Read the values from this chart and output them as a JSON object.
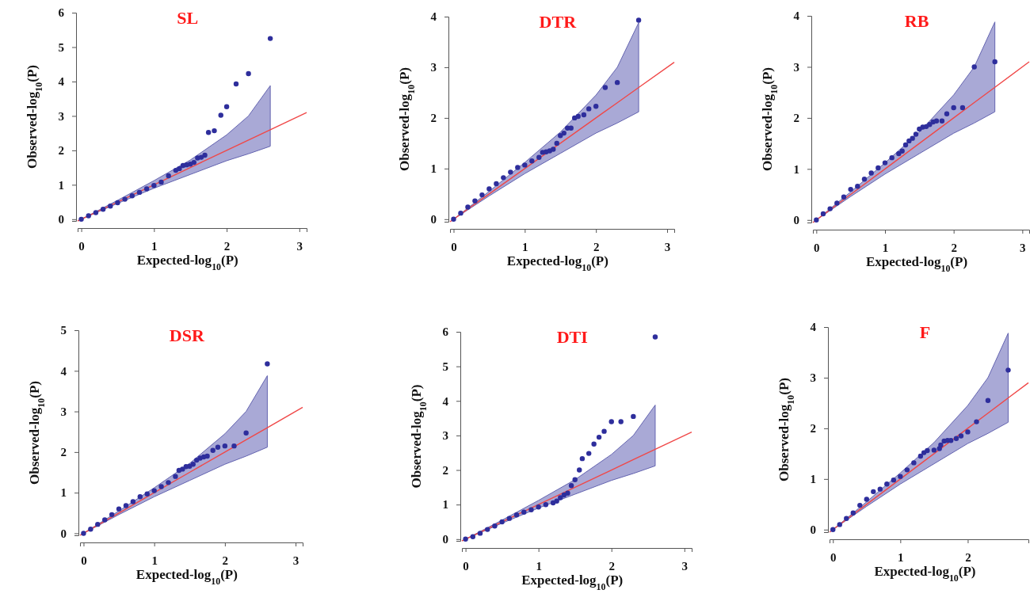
{
  "chart_data": [
    {
      "type": "scatter",
      "title": "SL",
      "xlabel": "Expected-log$_{10}$(P)",
      "ylabel": "Observed-log$_{10}$(P)",
      "xlim": [
        -0.05,
        3.1
      ],
      "ylim": [
        -0.05,
        6
      ],
      "xticks": [
        0,
        1,
        2,
        3
      ],
      "yticks": [
        0,
        1,
        2,
        3,
        4,
        5,
        6
      ],
      "series": [
        {
          "type": "line",
          "color": "#f04848",
          "x": [
            -0.05,
            0,
            0.5,
            1,
            1.5,
            2,
            2.3,
            2.6,
            3.1
          ],
          "values": [
            -0.05,
            0,
            0.5,
            1,
            1.5,
            2,
            2.3,
            2.6,
            3.1
          ],
          "lower": [
            null,
            0,
            0.46,
            0.9,
            1.3,
            1.7,
            1.9,
            2.12,
            null
          ],
          "upper": [
            null,
            0,
            0.55,
            1.12,
            1.72,
            2.45,
            3.0,
            3.88,
            null
          ]
        },
        {
          "type": "scatter",
          "marker": "circle",
          "color": "#2e2e9c",
          "x": [
            0,
            0.1,
            0.2,
            0.3,
            0.4,
            0.5,
            0.6,
            0.7,
            0.8,
            0.9,
            1.0,
            1.1,
            1.2,
            1.3,
            1.35,
            1.4,
            1.45,
            1.5,
            1.55,
            1.6,
            1.65,
            1.7,
            1.75,
            1.83,
            1.92,
            2.0,
            2.13,
            2.3,
            2.6
          ],
          "values": [
            0,
            0.1,
            0.19,
            0.29,
            0.38,
            0.48,
            0.58,
            0.68,
            0.78,
            0.88,
            0.98,
            1.08,
            1.26,
            1.42,
            1.47,
            1.56,
            1.58,
            1.6,
            1.65,
            1.78,
            1.8,
            1.86,
            2.52,
            2.57,
            3.02,
            3.27,
            3.93,
            4.23,
            5.25
          ]
        }
      ]
    },
    {
      "type": "scatter",
      "title": "DTR",
      "xlabel": "Expected-log$_{10}$(P)",
      "ylabel": "Observed-log$_{10}$(P)",
      "xlim": [
        -0.05,
        3.1
      ],
      "ylim": [
        -0.05,
        4
      ],
      "xticks": [
        0,
        1,
        2,
        3
      ],
      "yticks": [
        0,
        1,
        2,
        3,
        4
      ],
      "series": [
        {
          "type": "line",
          "color": "#f04848",
          "x": [
            -0.05,
            0,
            0.5,
            1,
            1.5,
            2,
            2.3,
            2.6,
            3.1
          ],
          "values": [
            -0.05,
            0,
            0.5,
            1,
            1.5,
            2,
            2.3,
            2.6,
            3.1
          ],
          "lower": [
            null,
            0,
            0.46,
            0.9,
            1.3,
            1.7,
            1.9,
            2.12,
            null
          ],
          "upper": [
            null,
            0,
            0.55,
            1.12,
            1.72,
            2.45,
            3.0,
            3.88,
            null
          ]
        },
        {
          "type": "scatter",
          "marker": "circle",
          "color": "#2e2e9c",
          "x": [
            0,
            0.1,
            0.2,
            0.3,
            0.4,
            0.5,
            0.6,
            0.7,
            0.8,
            0.9,
            1.0,
            1.1,
            1.2,
            1.25,
            1.3,
            1.35,
            1.4,
            1.45,
            1.5,
            1.55,
            1.6,
            1.65,
            1.7,
            1.75,
            1.83,
            1.9,
            2.0,
            2.13,
            2.3,
            2.6
          ],
          "values": [
            0,
            0.12,
            0.24,
            0.36,
            0.48,
            0.6,
            0.7,
            0.82,
            0.93,
            1.02,
            1.07,
            1.15,
            1.22,
            1.32,
            1.33,
            1.35,
            1.38,
            1.5,
            1.65,
            1.7,
            1.8,
            1.8,
            2.0,
            2.03,
            2.06,
            2.18,
            2.23,
            2.6,
            2.7,
            3.93
          ]
        }
      ]
    },
    {
      "type": "scatter",
      "title": "RB",
      "xlabel": "Expected-log$_{10}$(P)",
      "ylabel": "Observed-log$_{10}$(P)",
      "xlim": [
        -0.05,
        3.1
      ],
      "ylim": [
        -0.05,
        4
      ],
      "xticks": [
        0,
        1,
        2,
        3
      ],
      "yticks": [
        0,
        1,
        2,
        3,
        4
      ],
      "series": [
        {
          "type": "line",
          "color": "#f04848",
          "x": [
            -0.05,
            0,
            0.5,
            1,
            1.5,
            2,
            2.3,
            2.6,
            3.1
          ],
          "values": [
            -0.05,
            0,
            0.5,
            1,
            1.5,
            2,
            2.3,
            2.6,
            3.1
          ],
          "lower": [
            null,
            0,
            0.46,
            0.9,
            1.3,
            1.7,
            1.9,
            2.12,
            null
          ],
          "upper": [
            null,
            0,
            0.55,
            1.12,
            1.72,
            2.45,
            3.0,
            3.88,
            null
          ]
        },
        {
          "type": "scatter",
          "marker": "circle",
          "color": "#2e2e9c",
          "x": [
            0,
            0.1,
            0.2,
            0.3,
            0.4,
            0.5,
            0.6,
            0.7,
            0.8,
            0.9,
            1.0,
            1.1,
            1.2,
            1.25,
            1.3,
            1.35,
            1.4,
            1.45,
            1.5,
            1.55,
            1.6,
            1.65,
            1.7,
            1.75,
            1.83,
            1.9,
            2.0,
            2.13,
            2.3,
            2.6
          ],
          "values": [
            0,
            0.12,
            0.22,
            0.33,
            0.45,
            0.6,
            0.66,
            0.8,
            0.92,
            1.02,
            1.12,
            1.22,
            1.3,
            1.35,
            1.47,
            1.55,
            1.6,
            1.68,
            1.78,
            1.82,
            1.83,
            1.87,
            1.92,
            1.94,
            1.94,
            2.08,
            2.2,
            2.2,
            3.0,
            3.1
          ]
        }
      ]
    },
    {
      "type": "scatter",
      "title": "DSR",
      "xlabel": "Expected-log$_{10}$(P)",
      "ylabel": "Observed-log$_{10}$(P)",
      "xlim": [
        -0.05,
        3.1
      ],
      "ylim": [
        -0.05,
        5
      ],
      "xticks": [
        0,
        1,
        2,
        3
      ],
      "yticks": [
        0,
        1,
        2,
        3,
        4,
        5
      ],
      "series": [
        {
          "type": "line",
          "color": "#f04848",
          "x": [
            -0.05,
            0,
            0.5,
            1,
            1.5,
            2,
            2.3,
            2.6,
            3.1
          ],
          "values": [
            -0.05,
            0,
            0.5,
            1,
            1.5,
            2,
            2.3,
            2.6,
            3.1
          ],
          "lower": [
            null,
            0,
            0.46,
            0.9,
            1.3,
            1.7,
            1.9,
            2.12,
            null
          ],
          "upper": [
            null,
            0,
            0.55,
            1.12,
            1.72,
            2.45,
            3.0,
            3.88,
            null
          ]
        },
        {
          "type": "scatter",
          "marker": "circle",
          "color": "#2e2e9c",
          "x": [
            0,
            0.1,
            0.2,
            0.3,
            0.4,
            0.5,
            0.6,
            0.7,
            0.8,
            0.9,
            1.0,
            1.1,
            1.2,
            1.3,
            1.35,
            1.4,
            1.45,
            1.5,
            1.55,
            1.6,
            1.65,
            1.7,
            1.75,
            1.83,
            1.9,
            2.0,
            2.13,
            2.3,
            2.6
          ],
          "values": [
            0,
            0.1,
            0.22,
            0.33,
            0.46,
            0.6,
            0.68,
            0.78,
            0.9,
            0.97,
            1.05,
            1.15,
            1.25,
            1.4,
            1.55,
            1.58,
            1.64,
            1.65,
            1.7,
            1.8,
            1.85,
            1.88,
            1.9,
            2.04,
            2.12,
            2.15,
            2.15,
            2.47,
            4.17
          ]
        }
      ]
    },
    {
      "type": "scatter",
      "title": "DTI",
      "xlabel": "Expected-log$_{10}$(P)",
      "ylabel": "Observed-log$_{10}$(P)",
      "xlim": [
        -0.05,
        3.1
      ],
      "ylim": [
        -0.05,
        6
      ],
      "xticks": [
        0,
        1,
        2,
        3
      ],
      "yticks": [
        0,
        1,
        2,
        3,
        4,
        5,
        6
      ],
      "series": [
        {
          "type": "line",
          "color": "#f04848",
          "x": [
            -0.05,
            0,
            0.5,
            1,
            1.5,
            2,
            2.3,
            2.6,
            3.1
          ],
          "values": [
            -0.05,
            0,
            0.5,
            1,
            1.5,
            2,
            2.3,
            2.6,
            3.1
          ],
          "lower": [
            null,
            0,
            0.46,
            0.9,
            1.3,
            1.7,
            1.9,
            2.12,
            null
          ],
          "upper": [
            null,
            0,
            0.55,
            1.12,
            1.72,
            2.45,
            3.0,
            3.88,
            null
          ]
        },
        {
          "type": "scatter",
          "marker": "circle",
          "color": "#2e2e9c",
          "x": [
            0,
            0.1,
            0.2,
            0.3,
            0.4,
            0.5,
            0.6,
            0.7,
            0.8,
            0.9,
            1.0,
            1.1,
            1.2,
            1.25,
            1.3,
            1.35,
            1.4,
            1.45,
            1.5,
            1.56,
            1.6,
            1.69,
            1.76,
            1.83,
            1.9,
            2.0,
            2.13,
            2.3,
            2.6
          ],
          "values": [
            0,
            0.07,
            0.17,
            0.28,
            0.38,
            0.5,
            0.6,
            0.7,
            0.78,
            0.85,
            0.93,
            1.0,
            1.05,
            1.1,
            1.2,
            1.28,
            1.33,
            1.55,
            1.72,
            2.0,
            2.33,
            2.48,
            2.75,
            2.95,
            3.12,
            3.4,
            3.4,
            3.55,
            5.85
          ]
        }
      ]
    },
    {
      "type": "scatter",
      "title": "F",
      "xlabel": "Expected-log$_{10}$(P)",
      "ylabel": "Observed-log$_{10}$(P)",
      "xlim": [
        -0.05,
        2.9
      ],
      "ylim": [
        -0.05,
        4
      ],
      "xticks": [
        0,
        1,
        2
      ],
      "yticks": [
        0,
        1,
        2,
        3,
        4
      ],
      "series": [
        {
          "type": "line",
          "color": "#f04848",
          "x": [
            -0.05,
            0,
            0.5,
            1,
            1.5,
            2,
            2.3,
            2.6,
            2.9
          ],
          "values": [
            -0.05,
            0,
            0.5,
            1,
            1.5,
            2,
            2.3,
            2.6,
            2.9
          ],
          "lower": [
            null,
            0,
            0.46,
            0.9,
            1.3,
            1.7,
            1.9,
            2.12,
            null
          ],
          "upper": [
            null,
            0,
            0.55,
            1.12,
            1.72,
            2.45,
            3.0,
            3.88,
            null
          ]
        },
        {
          "type": "scatter",
          "marker": "circle",
          "color": "#2e2e9c",
          "x": [
            0,
            0.1,
            0.2,
            0.3,
            0.4,
            0.5,
            0.6,
            0.7,
            0.8,
            0.9,
            1.0,
            1.1,
            1.2,
            1.3,
            1.35,
            1.4,
            1.5,
            1.58,
            1.6,
            1.65,
            1.7,
            1.75,
            1.83,
            1.9,
            2.0,
            2.13,
            2.3,
            2.6
          ],
          "values": [
            0,
            0.1,
            0.22,
            0.33,
            0.48,
            0.6,
            0.75,
            0.8,
            0.9,
            0.98,
            1.05,
            1.18,
            1.32,
            1.45,
            1.52,
            1.56,
            1.57,
            1.6,
            1.67,
            1.75,
            1.76,
            1.76,
            1.8,
            1.85,
            1.93,
            2.13,
            2.55,
            3.15
          ]
        }
      ]
    }
  ]
}
